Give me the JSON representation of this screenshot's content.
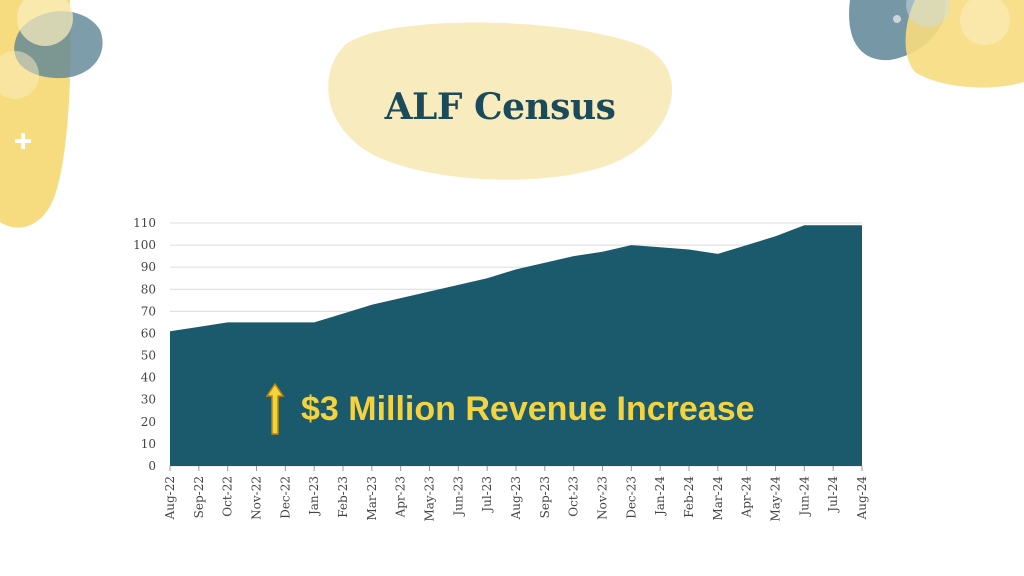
{
  "title": "ALF Census",
  "callout": {
    "text": "$3 Million Revenue Increase",
    "arrow_icon": "up-arrow-icon",
    "color": "#f5d33e"
  },
  "colors": {
    "area": "#1b5a6c",
    "title": "#1b4a5a",
    "blob_yellow": "#f7e7a6",
    "blob_teal": "#5e8596"
  },
  "chart_data": {
    "type": "area",
    "title": "",
    "xlabel": "",
    "ylabel": "",
    "ylim": [
      0,
      110
    ],
    "yticks": [
      0,
      10,
      20,
      30,
      40,
      50,
      60,
      70,
      80,
      90,
      100,
      110
    ],
    "grid": true,
    "categories": [
      "Aug-22",
      "Sep-22",
      "Oct-22",
      "Nov-22",
      "Dec-22",
      "Jan-23",
      "Feb-23",
      "Mar-23",
      "Apr-23",
      "May-23",
      "Jun-23",
      "Jul-23",
      "Aug-23",
      "Sep-23",
      "Oct-23",
      "Nov-23",
      "Dec-23",
      "Jan-24",
      "Feb-24",
      "Mar-24",
      "Apr-24",
      "May-24",
      "Jun-24",
      "Jul-24",
      "Aug-24"
    ],
    "values": [
      61,
      63,
      65,
      65,
      65,
      65,
      69,
      73,
      76,
      79,
      82,
      85,
      89,
      92,
      95,
      97,
      100,
      99,
      98,
      96,
      100,
      104,
      109,
      109,
      109
    ]
  }
}
